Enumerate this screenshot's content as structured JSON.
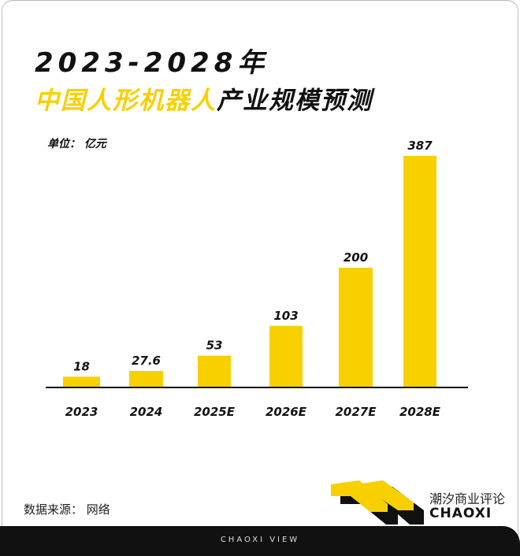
{
  "title_line1": "2023-2028年",
  "title_line2_highlight": "中国人形机器人",
  "title_line2_rest": "产业规模预测",
  "unit_label": "单位： 亿元",
  "source": "数据来源： 网络",
  "brand": {
    "cn": "潮汐商业评论",
    "en": "CHAOXI"
  },
  "footer": "CHAOXI VIEW",
  "colors": {
    "bar": "#f8d000",
    "text": "#111111"
  },
  "chart_data": {
    "type": "bar",
    "categories": [
      "2023",
      "2024",
      "2025E",
      "2026E",
      "2027E",
      "2028E"
    ],
    "values": [
      18,
      27.6,
      53,
      103,
      200,
      387
    ],
    "value_labels": [
      "18",
      "27.6",
      "53",
      "103",
      "200",
      "387"
    ],
    "ylabel": "单位： 亿元",
    "grid": false
  }
}
